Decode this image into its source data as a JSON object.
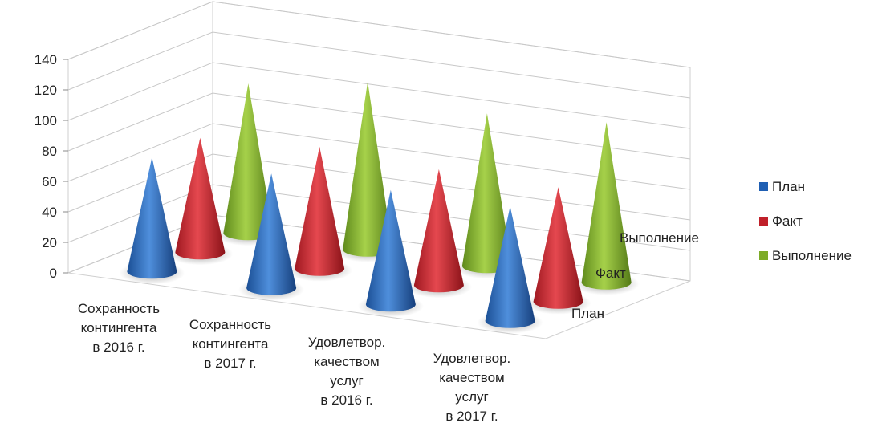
{
  "chart_data": {
    "type": "bar",
    "shape": "3d-cone",
    "categories": [
      [
        "Сохранность",
        "контингента",
        "в 2016 г."
      ],
      [
        "Сохранность",
        "контингента",
        "в 2017 г."
      ],
      [
        "Удовлетвор.",
        "качеством",
        "услуг",
        "в 2016 г."
      ],
      [
        "Удовлетвор.",
        "качеством",
        "услуг",
        "в 2017 г."
      ]
    ],
    "series": [
      {
        "name": "План",
        "values": [
          75,
          75,
          75,
          75
        ],
        "color": "#1f5fb3"
      },
      {
        "name": "Факт",
        "values": [
          75,
          80,
          76,
          75
        ],
        "color": "#c0202a"
      },
      {
        "name": "Выполнение",
        "values": [
          98,
          110,
          100,
          105
        ],
        "color": "#7dab28"
      }
    ],
    "depth_labels": [
      "План",
      "Факт",
      "Выполнение"
    ],
    "ylim": [
      0,
      140
    ],
    "yticks": [
      0,
      20,
      40,
      60,
      80,
      100,
      120,
      140
    ],
    "grid": true,
    "legend": "right"
  }
}
